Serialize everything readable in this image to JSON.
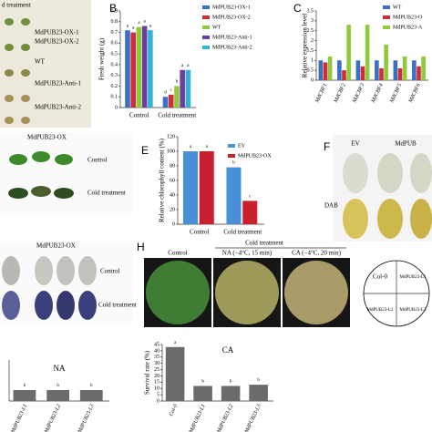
{
  "chart_data": [
    {
      "type": "bar",
      "label": "B",
      "ylabel": "Fresh weight (g)",
      "categories": [
        "Control",
        "Cold treatment"
      ],
      "series": [
        {
          "name": "MdPUB23-OX-1",
          "color": "#3b6fc4",
          "values": [
            0.72,
            0.1
          ],
          "letters": [
            "a",
            "d"
          ]
        },
        {
          "name": "MdPUB23-OX-2",
          "color": "#d22b3a",
          "values": [
            0.7,
            0.12
          ],
          "letters": [
            "a",
            "c"
          ]
        },
        {
          "name": "WT",
          "color": "#8ecb3a",
          "values": [
            0.75,
            0.2
          ],
          "letters": [
            "a",
            "b"
          ]
        },
        {
          "name": "MdPUB23-Anti-1",
          "color": "#6a3fa0",
          "values": [
            0.76,
            0.35
          ],
          "letters": [
            "a",
            "a"
          ]
        },
        {
          "name": "MdPUB23-Anti-2",
          "color": "#35b2d8",
          "values": [
            0.72,
            0.35
          ],
          "letters": [
            "a",
            "a"
          ]
        }
      ],
      "ylim": [
        0,
        0.9
      ],
      "yticks": [
        0,
        0.1,
        0.2,
        0.3,
        0.4,
        0.5,
        0.6,
        0.7,
        0.8,
        0.9
      ]
    },
    {
      "type": "bar",
      "label": "C",
      "ylabel": "Relative expression level",
      "categories": [
        "MdCBF1",
        "MdCBF2",
        "MdCBF3",
        "MdCBF4",
        "MdCBF5",
        "MdCBF6"
      ],
      "series": [
        {
          "name": "WT",
          "color": "#3b6fc4",
          "values": [
            1.0,
            1.0,
            1.0,
            1.0,
            1.0,
            1.0
          ]
        },
        {
          "name": "MdPUB23-O",
          "color": "#d22b3a",
          "values": [
            0.9,
            0.5,
            0.7,
            0.6,
            0.6,
            0.7
          ]
        },
        {
          "name": "MdPUB23-A",
          "color": "#8ecb3a",
          "values": [
            1.2,
            2.8,
            2.8,
            1.8,
            1.2,
            1.2
          ]
        }
      ],
      "ylim": [
        0,
        3.5
      ],
      "yticks": [
        0,
        0.5,
        1,
        1.5,
        2,
        2.5,
        3,
        3.5
      ]
    },
    {
      "type": "bar",
      "label": "E",
      "ylabel": "Relative chlorophyll content (%)",
      "categories": [
        "Control",
        "Cold treatment"
      ],
      "series": [
        {
          "name": "EV",
          "color": "#4a90d9",
          "values": [
            100,
            78
          ],
          "letters": [
            "a",
            "b"
          ]
        },
        {
          "name": "MdPUB23-OX",
          "color": "#c8202e",
          "values": [
            100,
            32
          ],
          "letters": [
            "a",
            "c"
          ]
        }
      ],
      "ylim": [
        0,
        120
      ],
      "yticks": [
        0,
        20,
        40,
        60,
        80,
        100,
        120
      ]
    },
    {
      "type": "bar",
      "title": "NA",
      "categories": [
        "MdPUB23-L1",
        "MdPUB23-L2",
        "MdPUB23-L3"
      ],
      "values": [
        12,
        12,
        12
      ],
      "letters": [
        "b",
        "b",
        "b"
      ],
      "color": "#6b6b6b",
      "ylim": [
        0,
        45
      ]
    },
    {
      "type": "bar",
      "title": "CA",
      "ylabel": "Survival rate (%)",
      "categories": [
        "Col-0",
        "MdPUB23-L1",
        "MdPUB23-L2",
        "MdPUB23-L3"
      ],
      "values": [
        43,
        12,
        12,
        13
      ],
      "letters": [
        "a",
        "b",
        "b",
        "b"
      ],
      "color": "#6b6b6b",
      "ylim": [
        0,
        45
      ],
      "yticks": [
        0,
        5,
        10,
        15,
        20,
        25,
        30,
        35,
        40,
        45
      ]
    }
  ],
  "photos": {
    "a": {
      "header": "d treatment",
      "rows": [
        "MdPUB23-OX-1",
        "MdPUB23-OX-2",
        "WT",
        "MdPUB23-Anti-1",
        "MdPUB23-Anti-2"
      ]
    },
    "d": {
      "title": "MdPUB23-OX",
      "rows": [
        "Control",
        "Cold treatment"
      ]
    },
    "f": {
      "label": "F",
      "columns": [
        "EV",
        "MdPUB"
      ],
      "row": "DAB"
    },
    "g": {
      "title": "MdPUB23-OX",
      "rows": [
        "Control",
        "Cold treatment"
      ]
    },
    "h": {
      "label": "H",
      "header": "Cold treatment",
      "plates": [
        "Control",
        "NA (−4°C, 15 min)",
        "CA (−4°C, 20 min)"
      ],
      "legend": [
        "Col-0",
        "MdPUB23-L1",
        "MdPUB23-L2",
        "MdPUB23-L3"
      ]
    }
  }
}
